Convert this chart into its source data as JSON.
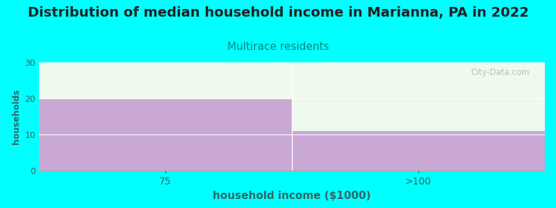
{
  "title": "Distribution of median household income in Marianna, PA in 2022",
  "subtitle": "Multirace residents",
  "xlabel": "household income ($1000)",
  "ylabel": "households",
  "categories": [
    "75",
    ">100"
  ],
  "values": [
    20,
    11
  ],
  "ylim": [
    0,
    30
  ],
  "yticks": [
    0,
    10,
    20,
    30
  ],
  "bar_color": "#c9a8d4",
  "background_color": "#00ffff",
  "plot_bg_color": "#edfaed",
  "title_fontsize": 14,
  "subtitle_fontsize": 11,
  "subtitle_color": "#008888",
  "axis_label_color": "#336666",
  "tick_color": "#336666",
  "watermark": "City-Data.com",
  "title_color": "#222222"
}
